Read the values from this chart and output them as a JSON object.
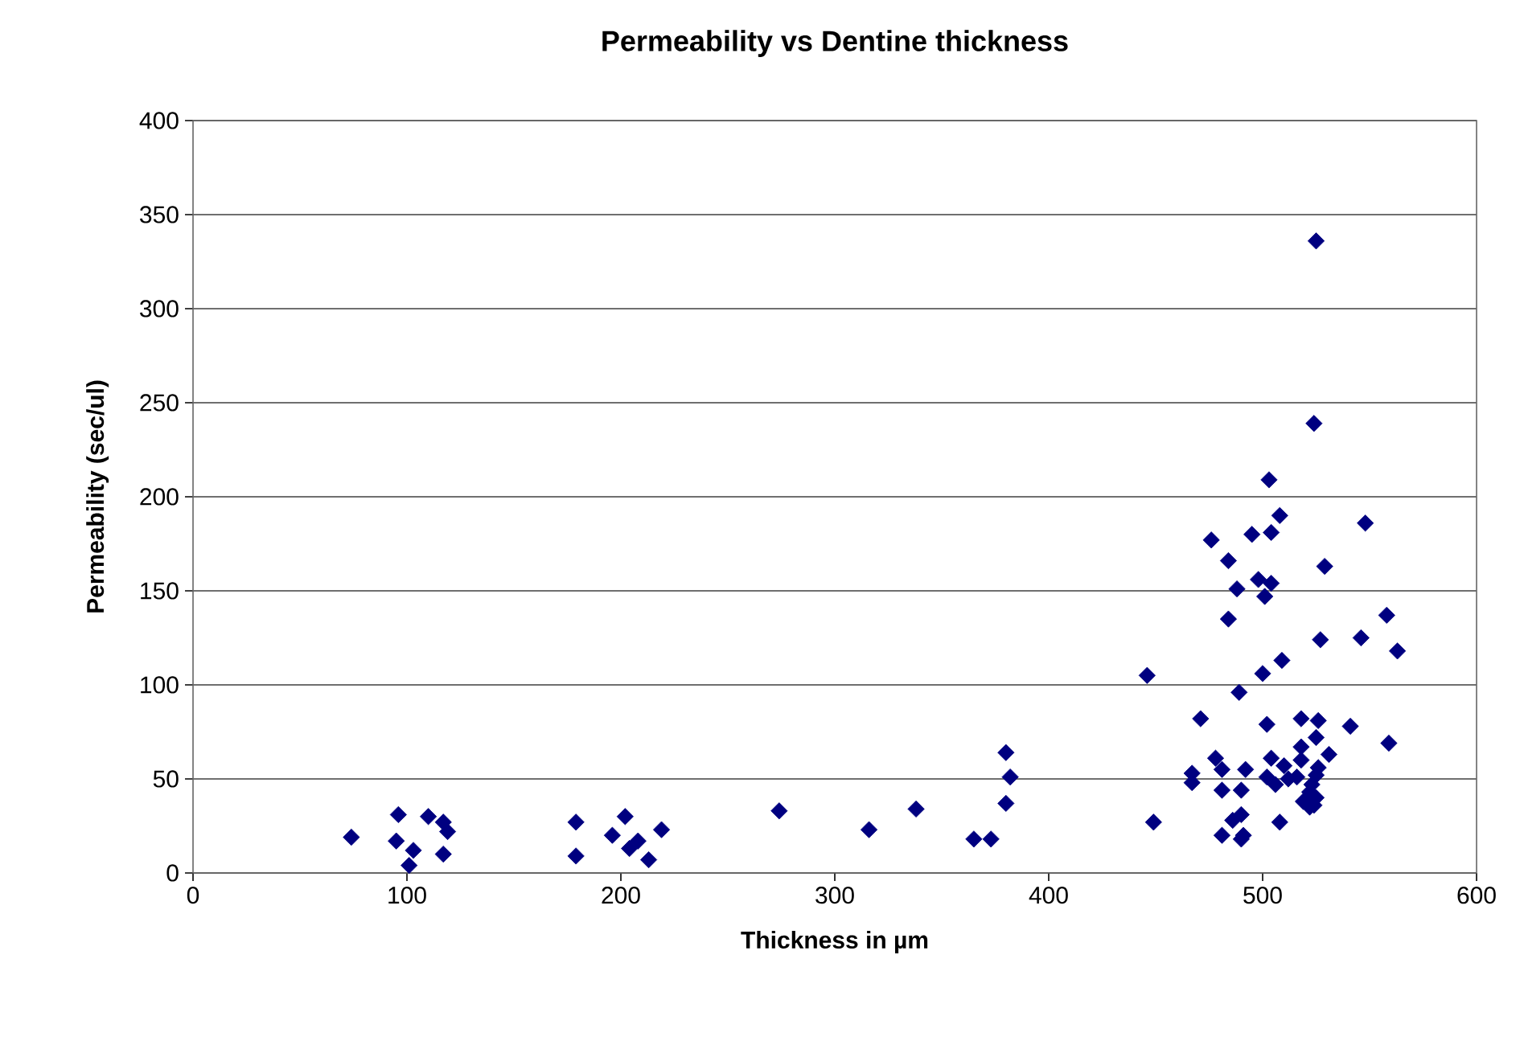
{
  "chart_data": {
    "type": "scatter",
    "title": "Permeability vs Dentine thickness",
    "xlabel": "Thickness in µm",
    "ylabel": "Permeability (sec/ul)",
    "xlim": [
      0,
      600
    ],
    "xticks": [
      0,
      100,
      200,
      300,
      400,
      500,
      600
    ],
    "ylim": [
      0,
      400
    ],
    "yticks": [
      0,
      50,
      100,
      150,
      200,
      250,
      300,
      350,
      400
    ],
    "grid": "y",
    "marker": "diamond",
    "series": [
      {
        "color": "#000080",
        "x": [
          74,
          96,
          95,
          103,
          101,
          110,
          117,
          119,
          117,
          179,
          179,
          202,
          196,
          208,
          204,
          213,
          219,
          274,
          316,
          338,
          365,
          373,
          380,
          382,
          380,
          446,
          449,
          524,
          503,
          508,
          548,
          476,
          495,
          504,
          484,
          529,
          498,
          504,
          488,
          501,
          484,
          558,
          527,
          546,
          563,
          509,
          500,
          489,
          471,
          502,
          518,
          526,
          541,
          525,
          518,
          531,
          559,
          478,
          504,
          467,
          467,
          481,
          481,
          481,
          486,
          490,
          490,
          491,
          492,
          490,
          502,
          506,
          508,
          510,
          512,
          516,
          518,
          519,
          522,
          523,
          525,
          526,
          522,
          525,
          524,
          525
        ],
        "values": [
          19,
          31,
          17,
          12,
          4,
          30,
          27,
          22,
          10,
          27,
          9,
          30,
          20,
          17,
          13,
          7,
          23,
          33,
          23,
          34,
          18,
          18,
          37,
          51,
          64,
          105,
          27,
          239,
          209,
          190,
          186,
          177,
          180,
          181,
          166,
          163,
          156,
          154,
          151,
          147,
          135,
          137,
          124,
          125,
          118,
          113,
          106,
          96,
          82,
          79,
          82,
          81,
          78,
          72,
          67,
          63,
          69,
          61,
          61,
          53,
          48,
          55,
          44,
          20,
          28,
          31,
          44,
          20,
          55,
          18,
          51,
          47,
          27,
          57,
          50,
          51,
          60,
          38,
          43,
          47,
          52,
          56,
          35,
          40,
          36,
          336
        ]
      }
    ]
  }
}
